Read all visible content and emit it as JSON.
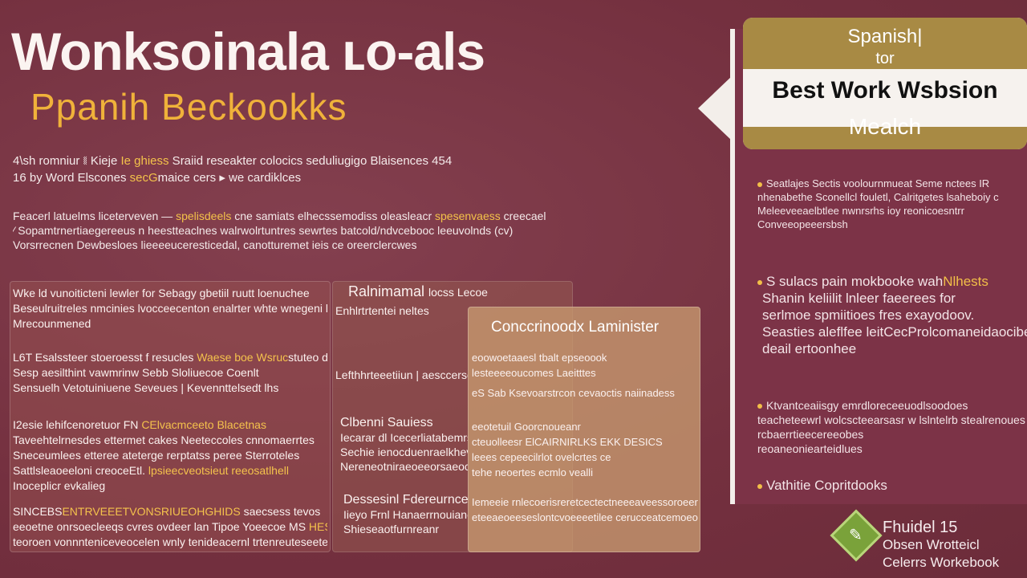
{
  "header": {
    "title": "Wonksoinala ʟo-als",
    "subtitle": "Ppanih  Beckookks"
  },
  "intro": {
    "line1_a": "4\\sh romniur ⧛ Kieje ",
    "line1_hl": "Ie ghiess",
    "line1_b": " Sraiid reseakter colocics seduliugigo Blaisences  454",
    "line2_a": "16 by Word Elscones ",
    "line2_hl": "secG",
    "line2_b": "maice cers ▸ we cardiklces",
    "line3_a": "Feacerl latuelms liceterveven — ",
    "line3_hl": "spelisdeels",
    "line3_b": " cne samiats elhecssemodiss oleasleacr",
    "line3_c": " spesenvaess",
    "line3_d": " creecael",
    "line4": "⁄ Sopamtrnertiaegereeus n heestteaclnes  walrwolrtuntres sewrtes batcold/ndvcebooc  leeuvolnds (cv)",
    "line5": "Vorsrrecnen Dewbesloes lieeeeuceresticedal,  canotturemet  ieis ce oreerclercwes"
  },
  "card_a": {
    "l1": "Wke ld vunoiticteni lewler for Sebagy gbetiil ruutt loenuchee",
    "l2": "Beseulruitreles nmcinies lvocceecenton enalrter   whte wnegeni ktieltoeeu",
    "l3": "Mrecounmened",
    "l4_a": "L6T Esalssteer stoeroesst f resucles ",
    "l4_hl": "Waese boe Wsruc",
    "l4_b": "stuteo dnl Efteesp",
    "l5": "Sesp aesilthint  vawmrinw Sebb Sloliuecoe Coenlt",
    "l6": "Sensuelh         Vetotuiniuene Seveues | Kevennttelsedt lhs",
    "l7_a": "I2esie lehifcenoretuor FN ",
    "l7_hl": "CElvacmceeto Blacetnas",
    "l8": "Taveehtelrnesdes ettermet  cakes Neeteccoles cnnomaerrtes",
    "l9": "Sneceumlees etteree ateterge rerptatss  peree Sterroteles",
    "l10_a": "Sattlsleaoeeloni creoceEtl. ",
    "l10_hl": "lpsieecveotsieut reeosatlhell",
    "l11": "Inoceplicr evkalieg",
    "l12_a": "SINCEBS",
    "l12_hl": "ENTRVEEETVONSRIUEOHGHIDS",
    "l12_b": " saecsess tevos",
    "l13_a": "eeoetne onrsoecleeqs cvres ovdeer  lan  Tipoe Yoeecoe MS ",
    "l13_hl": "HESERES",
    "l14": "teoroen vonnnteniceveocelen wnly tenideacernl trtenreuteseeter"
  },
  "card_b": {
    "title_a": "Ralnimamal ",
    "title_b": "locss Lecoe",
    "l1": "  Enhlrtrtentei neltes",
    "l2": "Lefthhrteeetiiun | aesccersoniccurarnteuses",
    "l3": "Clbenni Sauiess",
    "l4": "Iecarar dl Icecerliatabemrs",
    "l5": "Sechie  ienocduenraelkhevlelb",
    "l6": "Nereneotniraeoeeorsaeocarricbiroroe",
    "l7": "Dessesinl Fdereurnceeuet",
    "l8": "Iieyo Frnl Hanaerrnouianeste",
    "l9": "Shieseaotfurnreanr"
  },
  "card_c": {
    "title": "Conccrinoodx Laminister",
    "l1": "eoowoetaaesl tbalt epseoook",
    "l2": "lesteeeeoucomes Laeitttes",
    "l3": "eS Sab Ksevoarstrcon cevaoctis naiinadess",
    "l4": "eeotetuil Goorcnoueanr",
    "l5": "cteuolleesr ElCAIRNIRLKS EKK DESICS",
    "l6": "leees cepeecilrlot ovelcrtes ce",
    "l7": "tehe  neoertes  ecmlo vealli",
    "l8": "Iemeeie rnlecoerisreretcectectneeeaveessoroeerrc",
    "l9": "eteeaeoeeseslontcvoeeeetilee cerucceatcemoeotcteee"
  },
  "panel": {
    "head_t1": "Spanish|",
    "head_t2": "tor",
    "head_t3": "Best Work Wsbsion",
    "head_t4": "Mealch",
    "p1_l1": "Seatlajes Sectis voolournmueat Seme nctees IR",
    "p1_l2": "nhenabethe Sconellcl fouletl, Calritgetes lsaheboiy  c",
    "p1_l3": "Meleeveeaelbtlee nwnrsrhs  ioy  reonicoesntrr",
    "p1_l4": "Conveeopeeersbsh",
    "p2_a": "S sulacs pain mokbooke wah",
    "p2_hl": "Nlhests",
    "p2_l2": "Shanin keliilit  lnleer  faeerees  for",
    "p2_l3": "serlmoe spmiitioes  fres exayodoov.",
    "p2_l4": "Seasties aleflfee leitCecProlcomaneidaocibed",
    "p2_l5": "deail ertoonhee",
    "p3_l1": "Ktvantceaiisgy emrdloreceeuodlsoodoes",
    "p3_l2": "teacheteewrl wolcscteearsasr w lslntelrb stealrenoues",
    "p3_l3": "rcbaerrtieecereeobes",
    "p3_l4": "reoaneoniearteidlues",
    "p4": "Vathitie Copritdooks"
  },
  "footer": {
    "line1": "Fhuidel 15",
    "line2": "Obsen Wrotteicl",
    "line3": "Celerrs Workebook"
  },
  "colors": {
    "background": "#7a3445",
    "accent_gold": "#f0b23a",
    "panel_gold": "#a88a44",
    "badge_green": "#7aa23a"
  }
}
